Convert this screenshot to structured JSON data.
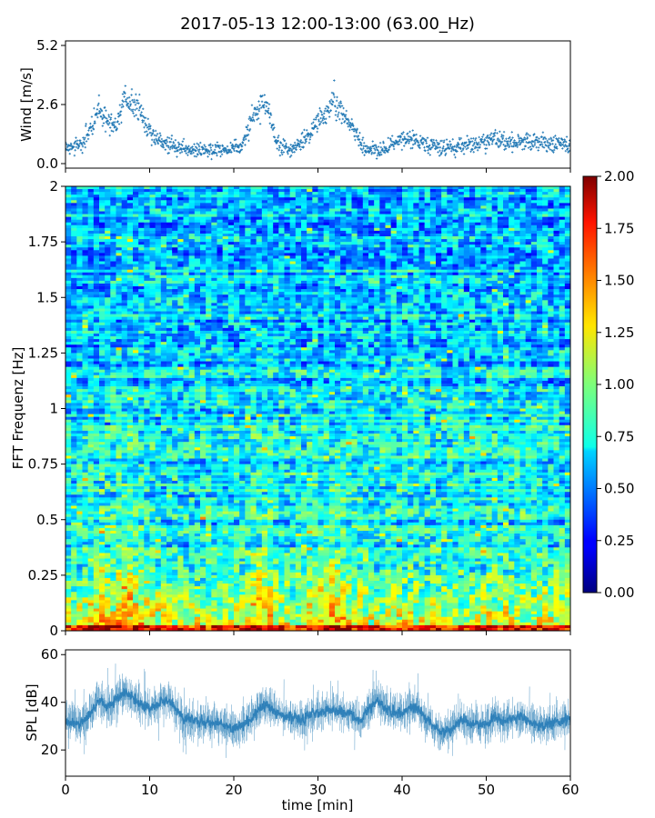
{
  "title": "2017-05-13 12:00-13:00 (63.00_Hz)",
  "chart_data": [
    {
      "id": "wind",
      "type": "scatter",
      "ylabel": "Wind [m/s]",
      "xlim": [
        0,
        60
      ],
      "ylim": [
        -0.2,
        5.4
      ],
      "yticks": [
        0.0,
        2.6,
        5.2
      ],
      "ytick_labels": [
        "0.0",
        "2.6",
        "5.2"
      ],
      "color": "#1f77b4",
      "trend_points": [
        [
          0,
          0.7
        ],
        [
          2,
          0.8
        ],
        [
          3,
          1.6
        ],
        [
          4,
          2.4
        ],
        [
          5,
          1.9
        ],
        [
          6,
          1.7
        ],
        [
          7,
          2.8
        ],
        [
          8,
          2.6
        ],
        [
          9,
          2.2
        ],
        [
          10,
          1.5
        ],
        [
          11,
          1.0
        ],
        [
          13,
          0.8
        ],
        [
          15,
          0.6
        ],
        [
          17,
          0.6
        ],
        [
          19,
          0.6
        ],
        [
          21,
          0.8
        ],
        [
          22,
          1.8
        ],
        [
          23,
          2.4
        ],
        [
          24,
          2.6
        ],
        [
          25,
          0.9
        ],
        [
          27,
          0.6
        ],
        [
          29,
          1.2
        ],
        [
          30,
          2.0
        ],
        [
          31,
          2.2
        ],
        [
          32,
          2.8
        ],
        [
          33,
          2.1
        ],
        [
          34,
          1.6
        ],
        [
          35,
          1.0
        ],
        [
          36,
          0.6
        ],
        [
          38,
          0.6
        ],
        [
          39,
          1.0
        ],
        [
          41,
          1.1
        ],
        [
          43,
          0.8
        ],
        [
          45,
          0.7
        ],
        [
          47,
          0.8
        ],
        [
          49,
          0.9
        ],
        [
          50,
          1.0
        ],
        [
          51,
          1.1
        ],
        [
          53,
          0.9
        ],
        [
          55,
          1.0
        ],
        [
          57,
          0.9
        ],
        [
          60,
          0.8
        ]
      ]
    },
    {
      "id": "spectrogram",
      "type": "heatmap",
      "ylabel": "FFT Frequenz [Hz]",
      "xlim": [
        0,
        60
      ],
      "ylim": [
        0,
        2
      ],
      "yticks": [
        0,
        0.25,
        0.5,
        0.75,
        1,
        1.25,
        1.5,
        1.75,
        2
      ],
      "ytick_labels": [
        "0",
        "0.25",
        "0.5",
        "0.75",
        "1",
        "1.25",
        "1.5",
        "1.75",
        "2"
      ],
      "colormap": "jet",
      "colorbar": {
        "range": [
          0.0,
          2.0
        ],
        "ticks": [
          "0.00",
          "0.25",
          "0.50",
          "0.75",
          "1.00",
          "1.25",
          "1.50",
          "1.75",
          "2.00"
        ]
      }
    },
    {
      "id": "spl",
      "type": "line",
      "ylabel": "SPL [dB]",
      "xlabel": "time [min]",
      "xlim": [
        0,
        60
      ],
      "ylim": [
        9,
        62
      ],
      "yticks": [
        20,
        40,
        60
      ],
      "ytick_labels": [
        "20",
        "40",
        "60"
      ],
      "xticks": [
        0,
        10,
        20,
        30,
        40,
        50,
        60
      ],
      "xtick_labels": [
        "0",
        "10",
        "20",
        "30",
        "40",
        "50",
        "60"
      ],
      "color": "#1f77b4",
      "trend_points": [
        [
          0,
          32
        ],
        [
          2,
          31
        ],
        [
          3,
          36
        ],
        [
          4,
          41
        ],
        [
          5,
          38
        ],
        [
          7,
          44
        ],
        [
          8,
          42
        ],
        [
          9,
          39
        ],
        [
          10,
          37
        ],
        [
          11,
          39
        ],
        [
          12,
          41
        ],
        [
          13,
          38
        ],
        [
          14,
          33
        ],
        [
          16,
          32
        ],
        [
          18,
          31
        ],
        [
          20,
          29
        ],
        [
          21,
          30
        ],
        [
          22,
          33
        ],
        [
          23,
          37
        ],
        [
          24,
          39
        ],
        [
          25,
          36
        ],
        [
          26,
          34
        ],
        [
          28,
          33
        ],
        [
          30,
          36
        ],
        [
          32,
          37
        ],
        [
          34,
          35
        ],
        [
          35,
          32
        ],
        [
          36,
          37
        ],
        [
          37,
          41
        ],
        [
          38,
          37
        ],
        [
          40,
          35
        ],
        [
          41,
          38
        ],
        [
          42,
          37
        ],
        [
          43,
          32
        ],
        [
          44,
          29
        ],
        [
          45,
          27
        ],
        [
          46,
          29
        ],
        [
          47,
          33
        ],
        [
          48,
          31
        ],
        [
          50,
          30
        ],
        [
          51,
          34
        ],
        [
          52,
          32
        ],
        [
          54,
          34
        ],
        [
          56,
          30
        ],
        [
          58,
          31
        ],
        [
          60,
          33
        ]
      ]
    }
  ]
}
